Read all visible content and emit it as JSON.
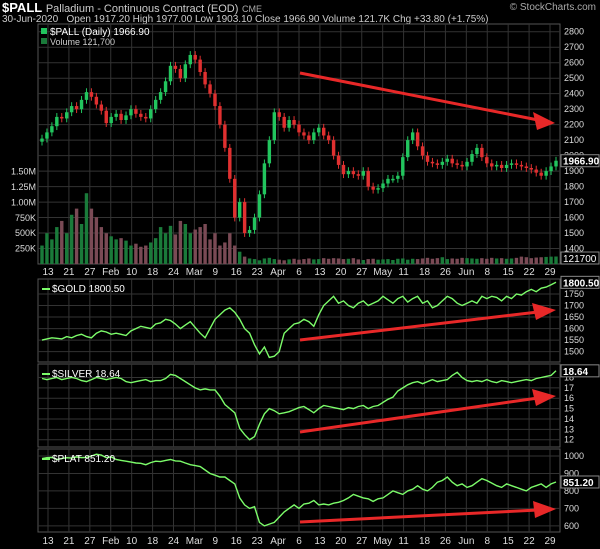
{
  "header": {
    "symbol": "$PALL",
    "name": "Palladium - Continuous Contract (EOD)",
    "exchange": "CME",
    "date": "30-Jun-2020",
    "ohlc_text": "Open 1917.20  High 1977.00  Low 1903.10  Close 1966.90  Volume 121.7K  Chg +33.80 (+1.75%)",
    "copyright": "© StockCharts.com"
  },
  "colors": {
    "background": "#000000",
    "grid": "#333333",
    "up_candle": "#22c55e",
    "down_candle": "#e03030",
    "line": "#7CFC6A",
    "arrow": "#e82828",
    "volume_up": "#1a7a3a",
    "volume_down": "#7a4a55"
  },
  "x_axis_labels": [
    "13",
    "21",
    "27",
    "Feb",
    "10",
    "18",
    "24",
    "Mar",
    "9",
    "16",
    "23",
    "Apr",
    "6",
    "13",
    "20",
    "27",
    "May",
    "11",
    "18",
    "26",
    "Jun",
    "8",
    "15",
    "22",
    "29"
  ],
  "chart_data": [
    {
      "panel": "price",
      "type": "candlestick",
      "title": "$PALL (Daily) 1966.90",
      "volume_label": "Volume 121,700",
      "ylim": [
        1300,
        2850
      ],
      "y_ticks": [
        1400,
        1500,
        1600,
        1700,
        1800,
        1900,
        2000,
        2100,
        2200,
        2300,
        2400,
        2500,
        2600,
        2700,
        2800
      ],
      "last_value": "1966.90",
      "volume_last": "121700",
      "volume_ticks": [
        "250K",
        "500K",
        "750K",
        "1.00M",
        "1.25M",
        "1.50M"
      ],
      "close": [
        2110,
        2150,
        2190,
        2250,
        2240,
        2280,
        2320,
        2300,
        2360,
        2410,
        2380,
        2330,
        2290,
        2210,
        2250,
        2270,
        2230,
        2260,
        2300,
        2270,
        2250,
        2240,
        2300,
        2360,
        2410,
        2480,
        2580,
        2560,
        2500,
        2590,
        2650,
        2620,
        2540,
        2460,
        2400,
        2320,
        2200,
        2050,
        1850,
        1600,
        1700,
        1500,
        1520,
        1600,
        1750,
        1950,
        2100,
        2280,
        2250,
        2180,
        2230,
        2200,
        2150,
        2130,
        2100,
        2150,
        2180,
        2130,
        2100,
        2000,
        1940,
        1880,
        1900,
        1880,
        1870,
        1900,
        1800,
        1780,
        1790,
        1820,
        1850,
        1850,
        1870,
        1990,
        2100,
        2150,
        2060,
        2000,
        1960,
        1950,
        1940,
        1960,
        1980,
        1950,
        1940,
        1930,
        1960,
        2010,
        2050,
        1990,
        1950,
        1930,
        1940,
        1920,
        1940,
        1950,
        1940,
        1930,
        1920,
        1910,
        1890,
        1870,
        1900,
        1930,
        1966.9
      ],
      "volume": [
        300,
        500,
        400,
        600,
        700,
        500,
        800,
        900,
        650,
        1150,
        900,
        760,
        600,
        500,
        450,
        400,
        420,
        380,
        300,
        330,
        280,
        300,
        350,
        420,
        600,
        500,
        620,
        480,
        700,
        650,
        500,
        560,
        600,
        650,
        400,
        500,
        300,
        350,
        500,
        300,
        200,
        120,
        90,
        80,
        60,
        90,
        100,
        80,
        70,
        60,
        75,
        85,
        70,
        80,
        90,
        75,
        80,
        95,
        85,
        95,
        90,
        80,
        85,
        95,
        75,
        65,
        80,
        85,
        70,
        75,
        80,
        65,
        85,
        90,
        70,
        85,
        80,
        90,
        100,
        85,
        95,
        110,
        80,
        90,
        85,
        100,
        95,
        90,
        85,
        95,
        85,
        100,
        90,
        95,
        85,
        90,
        100,
        120,
        110,
        95,
        105,
        110,
        115,
        120,
        121.7
      ]
    },
    {
      "panel": "gold",
      "type": "line",
      "title": "$GOLD 1800.50",
      "ylim": [
        1455,
        1815
      ],
      "y_ticks": [
        1500,
        1550,
        1600,
        1650,
        1700,
        1750
      ],
      "last_value": "1800.50",
      "values": [
        1550,
        1555,
        1560,
        1558,
        1555,
        1565,
        1560,
        1570,
        1575,
        1565,
        1560,
        1580,
        1590,
        1585,
        1575,
        1580,
        1575,
        1570,
        1590,
        1600,
        1610,
        1605,
        1600,
        1620,
        1625,
        1640,
        1635,
        1620,
        1600,
        1615,
        1630,
        1605,
        1580,
        1560,
        1600,
        1640,
        1660,
        1680,
        1690,
        1670,
        1640,
        1600,
        1580,
        1530,
        1490,
        1520,
        1475,
        1480,
        1500,
        1580,
        1600,
        1620,
        1625,
        1640,
        1630,
        1610,
        1660,
        1700,
        1720,
        1740,
        1710,
        1720,
        1700,
        1690,
        1710,
        1720,
        1700,
        1710,
        1720,
        1740,
        1725,
        1710,
        1730,
        1740,
        1715,
        1730,
        1740,
        1710,
        1720,
        1690,
        1700,
        1720,
        1740,
        1730,
        1710,
        1700,
        1710,
        1720,
        1710,
        1740,
        1730,
        1740,
        1735,
        1720,
        1740,
        1730,
        1750,
        1745,
        1760,
        1770,
        1760,
        1775,
        1780,
        1790,
        1800.5
      ]
    },
    {
      "panel": "silver",
      "type": "line",
      "title": "$SILVER 18.64",
      "ylim": [
        11.3,
        19.3
      ],
      "y_ticks": [
        12,
        13,
        14,
        15,
        16,
        17,
        18
      ],
      "last_value": "18.64",
      "values": [
        17.9,
        17.8,
        17.9,
        18.0,
        17.8,
        17.9,
        18.0,
        17.9,
        17.7,
        17.6,
        17.8,
        18.0,
        17.9,
        17.8,
        17.9,
        18.0,
        17.9,
        17.6,
        17.5,
        17.6,
        17.7,
        17.8,
        17.6,
        17.7,
        17.7,
        17.9,
        18.3,
        18.2,
        17.9,
        17.6,
        17.3,
        17.0,
        16.8,
        16.9,
        16.8,
        16.8,
        16.2,
        15.4,
        15.0,
        14.6,
        13.1,
        12.5,
        12.0,
        12.3,
        13.5,
        14.5,
        15.0,
        14.8,
        14.5,
        14.6,
        14.7,
        14.9,
        15.1,
        15.2,
        14.9,
        14.6,
        15.0,
        15.3,
        15.2,
        15.1,
        15.0,
        14.9,
        15.1,
        15.0,
        15.2,
        15.3,
        15.0,
        15.2,
        15.3,
        15.6,
        15.9,
        16.1,
        16.7,
        17.0,
        17.3,
        17.5,
        17.6,
        17.4,
        17.6,
        17.8,
        17.6,
        17.7,
        17.8,
        18.2,
        18.5,
        18.0,
        17.7,
        17.6,
        17.7,
        17.6,
        17.8,
        17.6,
        17.5,
        17.7,
        17.6,
        17.5,
        17.6,
        17.7,
        17.8,
        17.7,
        17.9,
        18.0,
        18.1,
        18.2,
        18.64
      ]
    },
    {
      "panel": "plat",
      "type": "line",
      "title": "$PLAT 851.20",
      "ylim": [
        565,
        1040
      ],
      "y_ticks": [
        600,
        700,
        800,
        900,
        1000
      ],
      "last_value": "851.20",
      "values": [
        985,
        990,
        992,
        980,
        985,
        990,
        988,
        995,
        990,
        992,
        1000,
        1010,
        1005,
        990,
        995,
        980,
        975,
        970,
        965,
        960,
        958,
        950,
        962,
        970,
        968,
        975,
        980,
        972,
        970,
        960,
        950,
        945,
        940,
        920,
        900,
        890,
        880,
        880,
        860,
        840,
        760,
        720,
        700,
        710,
        620,
        600,
        610,
        620,
        650,
        680,
        700,
        720,
        700,
        725,
        730,
        745,
        720,
        725,
        720,
        730,
        735,
        745,
        760,
        780,
        770,
        760,
        755,
        740,
        755,
        760,
        780,
        800,
        790,
        780,
        800,
        810,
        830,
        810,
        800,
        820,
        850,
        860,
        880,
        850,
        830,
        840,
        820,
        830,
        850,
        870,
        860,
        845,
        830,
        820,
        840,
        830,
        820,
        810,
        800,
        820,
        830,
        840,
        820,
        840,
        851.2
      ]
    }
  ]
}
